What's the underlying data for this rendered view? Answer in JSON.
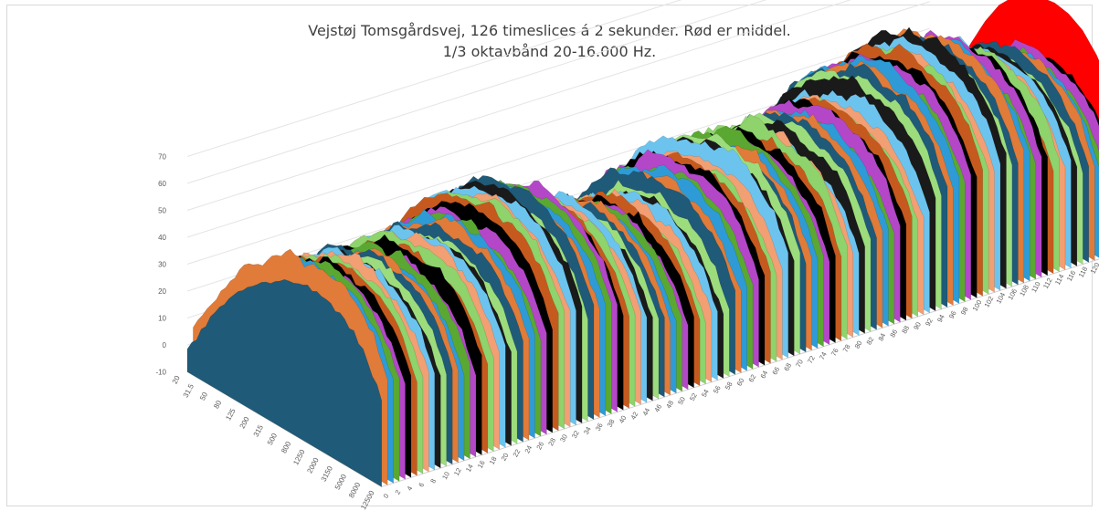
{
  "chart_data": {
    "type": "area",
    "title": "Vejstøj Tomsgårdsvej, 126 timeslices á 2 sekunder. Rød er middel.",
    "subtitle": "1/3 oktavbånd 20-16.000 Hz.",
    "yticks": [
      "-10",
      "0",
      "10",
      "20",
      "30",
      "40",
      "50",
      "60",
      "70"
    ],
    "ylim": [
      -10,
      70
    ],
    "frequency_ticks": [
      "20",
      "31.5",
      "50",
      "80",
      "125",
      "200",
      "315",
      "500",
      "800",
      "1250",
      "2000",
      "3150",
      "5000",
      "8000",
      "12500"
    ],
    "slice_count": 126,
    "slice_tick_step": 2,
    "mean_label": "Middel",
    "series_palette": [
      "#1f5a78",
      "#e07b39",
      "#2e9bd6",
      "#5aa832",
      "#b347c8",
      "#000000",
      "#c65a1e",
      "#8ed36b",
      "#f29f74",
      "#6cc4ee",
      "#1a1a1a",
      "#9cdc7c"
    ],
    "mean_color": "#ff0000",
    "highlight_series": [
      {
        "name": "0",
        "values": [
          -2,
          8,
          18,
          26,
          33,
          38,
          42,
          45,
          47,
          48,
          47,
          45,
          41,
          34,
          22
        ]
      },
      {
        "name": "Middel",
        "values": [
          0,
          10,
          22,
          34,
          45,
          54,
          60,
          64,
          66,
          67,
          66,
          63,
          57,
          48,
          35
        ]
      }
    ]
  }
}
